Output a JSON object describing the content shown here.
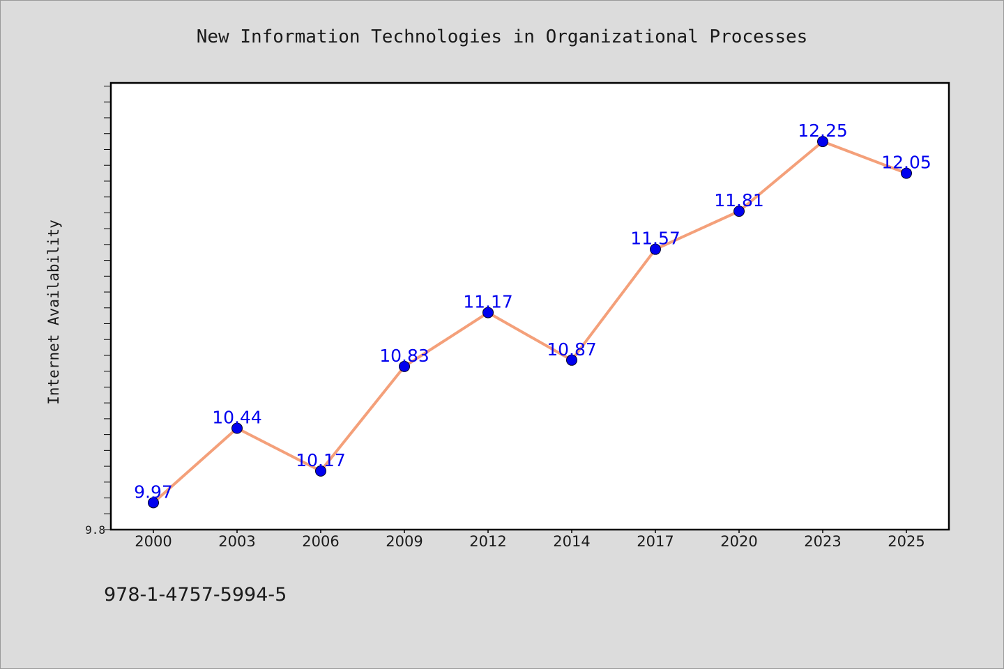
{
  "chart_data": {
    "type": "line",
    "title": "New Information Technologies in Organizational Processes",
    "ylabel": "Internet Availability",
    "xlabel": "",
    "categories": [
      "2000",
      "2003",
      "2006",
      "2009",
      "2012",
      "2014",
      "2017",
      "2020",
      "2023",
      "2025"
    ],
    "series": [
      {
        "values": [
          9.97,
          10.44,
          10.17,
          10.83,
          11.17,
          10.87,
          11.57,
          11.81,
          12.25,
          12.05
        ],
        "line_color": "#f4a07a",
        "marker_color": "#0000ee",
        "label_color": "#0000ee"
      }
    ],
    "ylim": [
      9.8,
      12.62
    ],
    "ytick_label": "9.8",
    "grid": false,
    "legend": "none",
    "data_labels": true
  },
  "footer": {
    "isbn": "978-1-4757-5994-5"
  }
}
